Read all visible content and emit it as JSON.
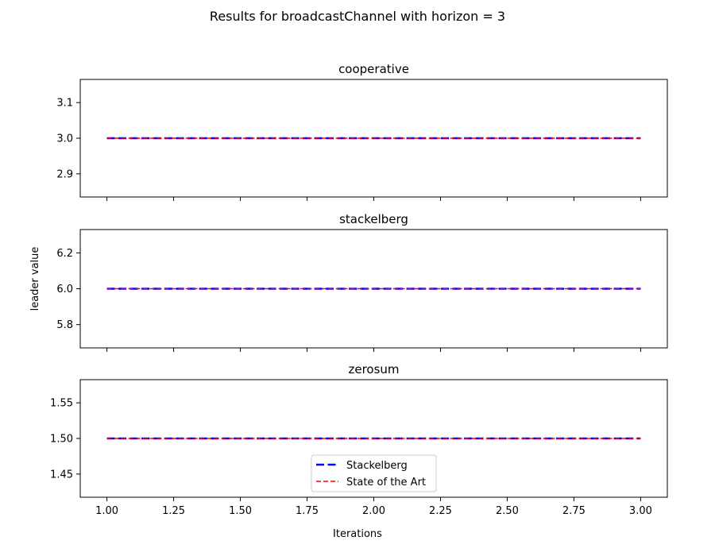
{
  "chart_data": {
    "type": "line",
    "title": "Results for broadcastChannel with horizon = 3",
    "xlabel": "Iterations",
    "ylabel": "leader value",
    "xlim": [
      0.9,
      3.1
    ],
    "x_ticks": [
      "1.00",
      "1.25",
      "1.50",
      "1.75",
      "2.00",
      "2.25",
      "2.50",
      "2.75",
      "3.00"
    ],
    "legend": {
      "placement": "lower center of bottom subplot",
      "entries": [
        {
          "label": "Stackelberg",
          "color": "#0000ff",
          "style": "dashed-thick"
        },
        {
          "label": "State of the Art",
          "color": "#ff0000",
          "style": "dashed"
        }
      ]
    },
    "subplots": [
      {
        "title": "cooperative",
        "ylim": [
          2.835,
          3.165
        ],
        "y_ticks": [
          "2.9",
          "3.0",
          "3.1"
        ],
        "x": [
          1.0,
          3.0
        ],
        "series": [
          {
            "name": "Stackelberg",
            "values": [
              3.0,
              3.0
            ]
          },
          {
            "name": "State of the Art",
            "values": [
              3.0,
              3.0
            ]
          }
        ]
      },
      {
        "title": "stackelberg",
        "ylim": [
          5.67,
          6.33
        ],
        "y_ticks": [
          "5.8",
          "6.0",
          "6.2"
        ],
        "x": [
          1.0,
          3.0
        ],
        "series": [
          {
            "name": "Stackelberg",
            "values": [
              6.0,
              6.0
            ]
          },
          {
            "name": "State of the Art",
            "values": [
              6.0,
              6.0
            ]
          }
        ]
      },
      {
        "title": "zerosum",
        "ylim": [
          1.4175,
          1.5825
        ],
        "y_ticks": [
          "1.45",
          "1.50",
          "1.55"
        ],
        "x": [
          1.0,
          3.0
        ],
        "series": [
          {
            "name": "Stackelberg",
            "values": [
              1.5,
              1.5
            ]
          },
          {
            "name": "State of the Art",
            "values": [
              1.5,
              1.5
            ]
          }
        ]
      }
    ]
  }
}
